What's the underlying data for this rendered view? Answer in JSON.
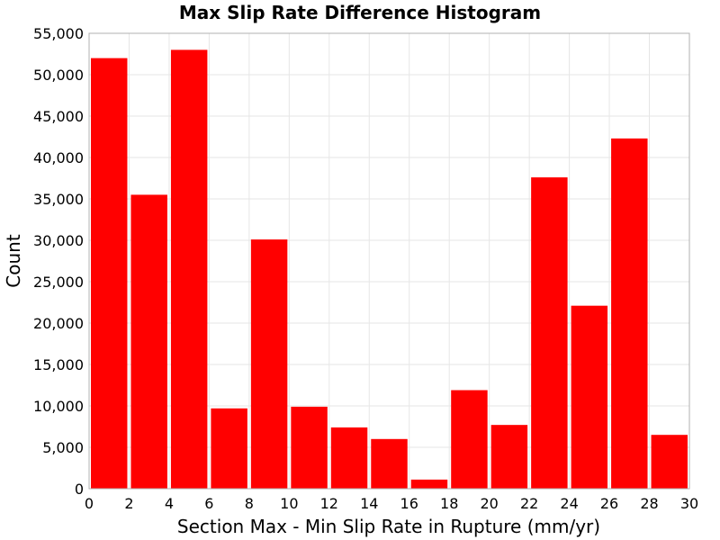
{
  "chart_data": {
    "type": "bar",
    "title": "Max Slip Rate Difference Histogram",
    "xlabel": "Section Max - Min Slip Rate in Rupture (mm/yr)",
    "ylabel": "Count",
    "xlim": [
      0,
      30
    ],
    "ylim": [
      0,
      55000
    ],
    "bin_width": 2,
    "x_ticks": [
      0,
      2,
      4,
      6,
      8,
      10,
      12,
      14,
      16,
      18,
      20,
      22,
      24,
      26,
      28,
      30
    ],
    "y_ticks": [
      0,
      5000,
      10000,
      15000,
      20000,
      25000,
      30000,
      35000,
      40000,
      45000,
      50000,
      55000
    ],
    "y_tick_labels": [
      "0",
      "5,000",
      "10,000",
      "15,000",
      "20,000",
      "25,000",
      "30,000",
      "35,000",
      "40,000",
      "45,000",
      "50,000",
      "55,000"
    ],
    "bin_centers": [
      1,
      3,
      5,
      7,
      9,
      11,
      13,
      15,
      17,
      19,
      21,
      23,
      25,
      27,
      29
    ],
    "values": [
      52000,
      35500,
      53000,
      9700,
      30100,
      9900,
      7400,
      6000,
      1100,
      11900,
      7700,
      37600,
      22100,
      42300,
      6500
    ],
    "bar_color": "#ff0000",
    "grid": true
  }
}
